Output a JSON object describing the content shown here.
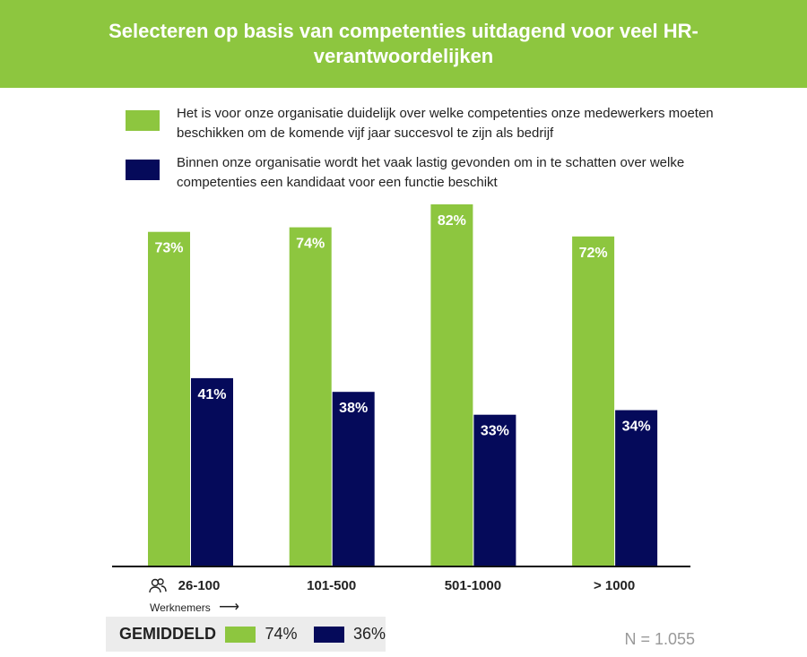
{
  "header": {
    "title": "Selecteren op basis van competenties uitdagend voor veel HR-verantwoordelijken"
  },
  "chart_data": {
    "type": "bar",
    "title": "Selecteren op basis van competenties uitdagend voor veel HR-verantwoordelijken",
    "categories": [
      "26-100",
      "101-500",
      "501-1000",
      "> 1000"
    ],
    "xlabel": "Werknemers",
    "series": [
      {
        "name": "Het is voor onze organisatie duidelijk over welke competenties onze medewerkers moeten beschikken om de komende vijf jaar succesvol te zijn als bedrijf",
        "color": "#8dc63f",
        "values": [
          73,
          74,
          82,
          72
        ],
        "labels": [
          "73%",
          "74%",
          "82%",
          "72%"
        ]
      },
      {
        "name": "Binnen onze organisatie wordt het vaak lastig gevonden om in te schatten over welke competenties een kandidaat voor een functie beschikt",
        "color": "#050a5a",
        "values": [
          41,
          38,
          33,
          34
        ],
        "labels": [
          "41%",
          "38%",
          "33%",
          "34%"
        ]
      }
    ],
    "ylim": [
      0,
      100
    ],
    "grid": false,
    "legend": "top"
  },
  "footer": {
    "label": "GEMIDDELD",
    "avg_green": "74%",
    "avg_navy": "36%",
    "n": "N = 1.055",
    "icon": "people-icon",
    "arrow": "arrow-right-icon"
  }
}
